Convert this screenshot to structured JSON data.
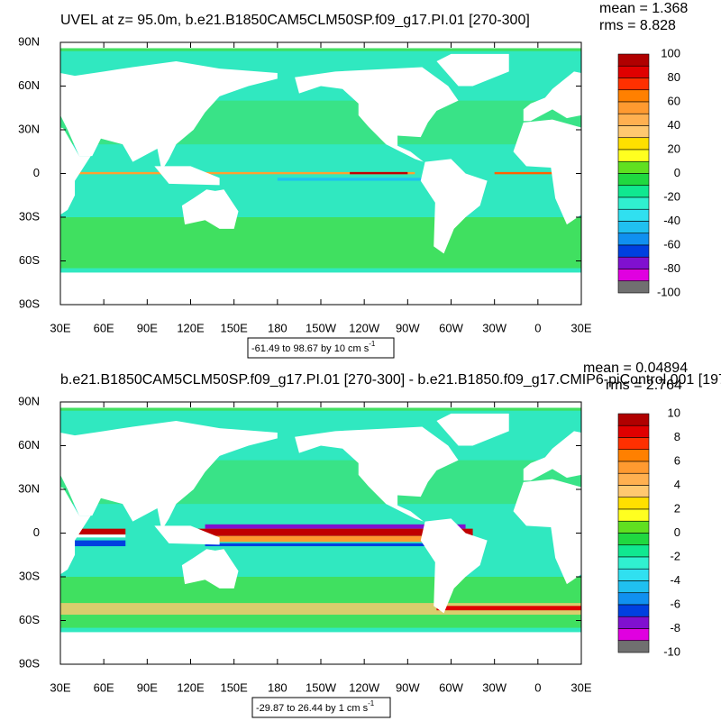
{
  "panels": [
    {
      "title": "UVEL at z=  95.0m, b.e21.B1850CAM5CLM50SP.f09_g17.PI.01 [270-300]",
      "mean": "mean = 1.368",
      "rms": "rms = 8.828",
      "lat_labels": [
        "90N",
        "60N",
        "30N",
        "0",
        "30S",
        "60S",
        "90S"
      ],
      "lon_labels": [
        "30E",
        "60E",
        "90E",
        "120E",
        "150E",
        "180",
        "150W",
        "120W",
        "90W",
        "60W",
        "30W",
        "0",
        "30E"
      ],
      "colorbar": {
        "labels": [
          "100",
          "80",
          "60",
          "40",
          "20",
          "0",
          "-20",
          "-40",
          "-60",
          "-80",
          "-100"
        ],
        "colors": [
          "#b00000",
          "#e00000",
          "#ff3000",
          "#ff8000",
          "#ff9a30",
          "#ffb050",
          "#ffc870",
          "#ffe000",
          "#ffff20",
          "#60e020",
          "#20d840",
          "#10e890",
          "#30f0d0",
          "#30e0f0",
          "#20c0f0",
          "#1090f0",
          "#0040e0",
          "#8010d0",
          "#e000e0",
          "#d8d8d8"
        ]
      },
      "range_text": "-61.49 to 98.67 by 10 cm s",
      "range_exponent": "-1"
    },
    {
      "title": "b.e21.B1850CAM5CLM50SP.f09_g17.PI.01 [270-300] - b.e21.B1850.f09_g17.CMIP6-piControl.001 [197",
      "mean": "mean = 0.04894",
      "rms": "rms = 2.764",
      "lat_labels": [
        "90N",
        "60N",
        "30N",
        "0",
        "30S",
        "60S",
        "90S"
      ],
      "lon_labels": [
        "30E",
        "60E",
        "90E",
        "120E",
        "150E",
        "180",
        "150W",
        "120W",
        "90W",
        "60W",
        "30W",
        "0",
        "30E"
      ],
      "colorbar": {
        "labels": [
          "10",
          "8",
          "6",
          "4",
          "2",
          "0",
          "-2",
          "-4",
          "-6",
          "-8",
          "-10"
        ],
        "colors": [
          "#b00000",
          "#e00000",
          "#ff3000",
          "#ff8000",
          "#ff9a30",
          "#ffb050",
          "#ffc870",
          "#ffe000",
          "#ffff20",
          "#60e020",
          "#20d840",
          "#10e890",
          "#30f0d0",
          "#30e0f0",
          "#20c0f0",
          "#1090f0",
          "#0040e0",
          "#8010d0",
          "#e000e0",
          "#d8d8d8"
        ]
      },
      "range_text": "-29.87 to 26.44 by 1 cm s",
      "range_exponent": "-1"
    }
  ]
}
